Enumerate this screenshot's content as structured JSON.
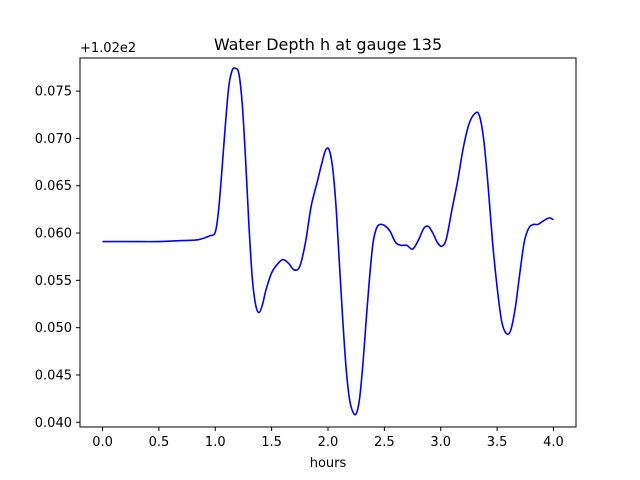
{
  "chart_data": {
    "type": "line",
    "title": "Water Depth h at gauge 135",
    "xlabel": "hours",
    "ylabel": "",
    "y_offset_label": "+1.02e2",
    "xlim": [
      -0.2,
      4.2
    ],
    "ylim": [
      0.0395,
      0.0785
    ],
    "xticks": [
      0.0,
      0.5,
      1.0,
      1.5,
      2.0,
      2.5,
      3.0,
      3.5,
      4.0
    ],
    "xtick_labels": [
      "0.0",
      "0.5",
      "1.0",
      "1.5",
      "2.0",
      "2.5",
      "3.0",
      "3.5",
      "4.0"
    ],
    "yticks": [
      0.04,
      0.045,
      0.05,
      0.055,
      0.06,
      0.065,
      0.07,
      0.075
    ],
    "ytick_labels": [
      "0.040",
      "0.045",
      "0.050",
      "0.055",
      "0.060",
      "0.065",
      "0.070",
      "0.075"
    ],
    "grid": false,
    "series": [
      {
        "color": "#0000ff",
        "x": [
          0.0,
          0.25,
          0.5,
          0.7,
          0.85,
          0.95,
          1.0,
          1.03,
          1.06,
          1.09,
          1.12,
          1.15,
          1.18,
          1.21,
          1.24,
          1.27,
          1.3,
          1.33,
          1.36,
          1.39,
          1.42,
          1.45,
          1.5,
          1.55,
          1.6,
          1.65,
          1.7,
          1.75,
          1.8,
          1.85,
          1.9,
          1.95,
          1.98,
          2.01,
          2.04,
          2.07,
          2.1,
          2.13,
          2.16,
          2.19,
          2.22,
          2.25,
          2.28,
          2.31,
          2.34,
          2.37,
          2.4,
          2.43,
          2.46,
          2.5,
          2.55,
          2.6,
          2.65,
          2.7,
          2.75,
          2.8,
          2.85,
          2.89,
          2.93,
          2.97,
          3.01,
          3.05,
          3.1,
          3.15,
          3.2,
          3.25,
          3.3,
          3.34,
          3.38,
          3.42,
          3.46,
          3.5,
          3.54,
          3.58,
          3.62,
          3.66,
          3.7,
          3.74,
          3.78,
          3.82,
          3.86,
          3.9,
          3.94,
          3.97,
          4.0
        ],
        "y": [
          0.0591,
          0.0591,
          0.0591,
          0.0592,
          0.0593,
          0.0597,
          0.0601,
          0.0625,
          0.0668,
          0.0715,
          0.0755,
          0.0772,
          0.0774,
          0.0768,
          0.0735,
          0.0675,
          0.0605,
          0.055,
          0.0523,
          0.0516,
          0.0525,
          0.054,
          0.0558,
          0.0567,
          0.0572,
          0.0568,
          0.0561,
          0.0565,
          0.059,
          0.0628,
          0.0652,
          0.0676,
          0.0688,
          0.0688,
          0.067,
          0.063,
          0.057,
          0.051,
          0.0458,
          0.0425,
          0.0411,
          0.0409,
          0.0425,
          0.0462,
          0.051,
          0.0555,
          0.059,
          0.0605,
          0.0609,
          0.0608,
          0.0602,
          0.059,
          0.0587,
          0.0587,
          0.0583,
          0.0592,
          0.0605,
          0.0607,
          0.06,
          0.059,
          0.0586,
          0.0594,
          0.0625,
          0.0655,
          0.069,
          0.0715,
          0.0726,
          0.0725,
          0.07,
          0.065,
          0.059,
          0.0543,
          0.0507,
          0.0494,
          0.0497,
          0.052,
          0.0556,
          0.059,
          0.0605,
          0.0609,
          0.0609,
          0.0612,
          0.0615,
          0.0616,
          0.0614
        ]
      }
    ]
  }
}
